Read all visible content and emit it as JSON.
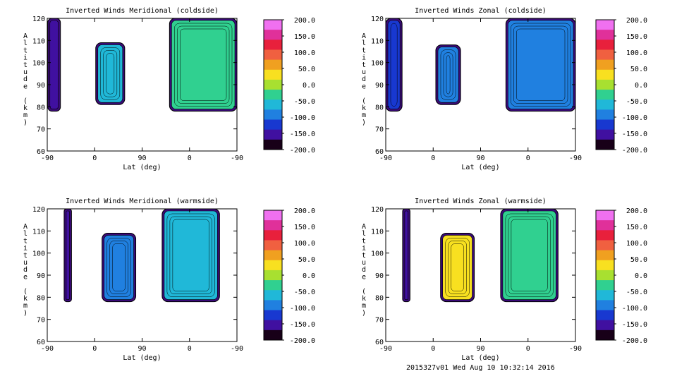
{
  "footer": "2015327v01 Wed Aug 10 10:32:14 2016",
  "colorbar": {
    "ticks": [
      "200.0",
      "150.0",
      "100.0",
      "50.0",
      "0.0",
      "-50.0",
      "-100.0",
      "-150.0",
      "-200.0"
    ],
    "colors": [
      "#f070f0",
      "#e0309a",
      "#e8203c",
      "#f06040",
      "#f0a020",
      "#f8e020",
      "#a8e030",
      "#30d090",
      "#20b8d8",
      "#2080e0",
      "#1838d0",
      "#4010a0",
      "#180018"
    ]
  },
  "chart_data": [
    {
      "type": "heatmap",
      "title": "Inverted Winds Meridional (coldside)",
      "xlabel": "Lat (deg)",
      "ylabel": "Altitude (km)",
      "x_ticks": [
        "-90",
        "0",
        "90",
        "0",
        "-90"
      ],
      "y_ticks": [
        "60",
        "70",
        "80",
        "90",
        "100",
        "110",
        "120"
      ],
      "ylim": [
        60,
        120
      ],
      "colorbar_range": [
        -200,
        200
      ],
      "blobs": [
        {
          "x0": -89,
          "x1": -65,
          "y_bottom": 78,
          "y_top": 120,
          "value": -150
        },
        {
          "x0": 2,
          "x1": 57,
          "y_bottom": 81,
          "y_top": 109,
          "value": -60
        },
        {
          "x0": 142,
          "x1": 270,
          "y_bottom": 78,
          "y_top": 120,
          "value": -30
        }
      ]
    },
    {
      "type": "heatmap",
      "title": "Inverted Winds Zonal (coldside)",
      "xlabel": "Lat (deg)",
      "ylabel": "Altitude (km)",
      "x_ticks": [
        "-90",
        "0",
        "90",
        "0",
        "-90"
      ],
      "y_ticks": [
        "60",
        "70",
        "80",
        "90",
        "100",
        "110",
        "120"
      ],
      "ylim": [
        60,
        120
      ],
      "colorbar_range": [
        -200,
        200
      ],
      "blobs": [
        {
          "x0": -90,
          "x1": -59,
          "y_bottom": 78,
          "y_top": 120,
          "value": -110
        },
        {
          "x0": 5,
          "x1": 52,
          "y_bottom": 81,
          "y_top": 108,
          "value": -100
        },
        {
          "x0": 138,
          "x1": 270,
          "y_bottom": 78,
          "y_top": 120,
          "value": -80
        }
      ]
    },
    {
      "type": "heatmap",
      "title": "Inverted Winds Meridional (warmside)",
      "xlabel": "Lat (deg)",
      "ylabel": "Altitude (km)",
      "x_ticks": [
        "-90",
        "0",
        "90",
        "0",
        "-90"
      ],
      "y_ticks": [
        "60",
        "70",
        "80",
        "90",
        "100",
        "110",
        "120"
      ],
      "ylim": [
        60,
        120
      ],
      "colorbar_range": [
        -200,
        200
      ],
      "blobs": [
        {
          "x0": -58,
          "x1": -44,
          "y_bottom": 78,
          "y_top": 120,
          "value": -160
        },
        {
          "x0": 14,
          "x1": 78,
          "y_bottom": 78,
          "y_top": 109,
          "value": -80
        },
        {
          "x0": 128,
          "x1": 237,
          "y_bottom": 78,
          "y_top": 120,
          "value": -50
        }
      ]
    },
    {
      "type": "heatmap",
      "title": "Inverted Winds Zonal (warmside)",
      "xlabel": "Lat (deg)",
      "ylabel": "Altitude (km)",
      "x_ticks": [
        "-90",
        "0",
        "90",
        "0",
        "-90"
      ],
      "y_ticks": [
        "60",
        "70",
        "80",
        "90",
        "100",
        "110",
        "120"
      ],
      "ylim": [
        60,
        120
      ],
      "colorbar_range": [
        -200,
        200
      ],
      "blobs": [
        {
          "x0": -58,
          "x1": -44,
          "y_bottom": 78,
          "y_top": 120,
          "value": -150
        },
        {
          "x0": 14,
          "x1": 78,
          "y_bottom": 78,
          "y_top": 109,
          "value": 20
        },
        {
          "x0": 128,
          "x1": 237,
          "y_bottom": 78,
          "y_top": 120,
          "value": -20
        }
      ]
    }
  ]
}
